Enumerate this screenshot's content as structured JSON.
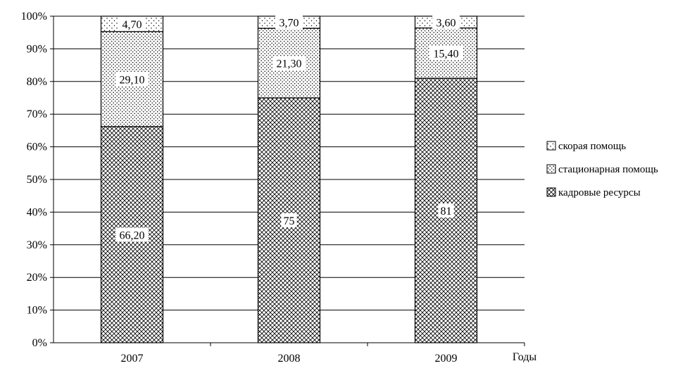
{
  "chart_data": {
    "type": "bar",
    "stacked": true,
    "percent_stacked": true,
    "categories": [
      "2007",
      "2008",
      "2009"
    ],
    "series": [
      {
        "name": "кадровые ресурсы",
        "values": [
          66.2,
          75,
          81
        ],
        "value_labels": [
          "66,20",
          "75",
          "81"
        ],
        "pattern": "crosshatch-dense"
      },
      {
        "name": "стационарная помощь",
        "values": [
          29.1,
          21.3,
          15.4
        ],
        "value_labels": [
          "29,10",
          "21,30",
          "15,40"
        ],
        "pattern": "dots-medium"
      },
      {
        "name": "скорая помощь",
        "values": [
          4.7,
          3.7,
          3.6
        ],
        "value_labels": [
          "4,70",
          "3,70",
          "3,60"
        ],
        "pattern": "dots-sparse"
      }
    ],
    "yticks": [
      "0%",
      "10%",
      "20%",
      "30%",
      "40%",
      "50%",
      "60%",
      "70%",
      "80%",
      "90%",
      "100%"
    ],
    "ylim": [
      0,
      100
    ],
    "xlabel": "Годы",
    "ylabel": "",
    "title": "",
    "grid": true,
    "legend_position": "right",
    "legend_order": [
      "скорая помощь",
      "стационарная помощь",
      "кадровые ресурсы"
    ]
  }
}
